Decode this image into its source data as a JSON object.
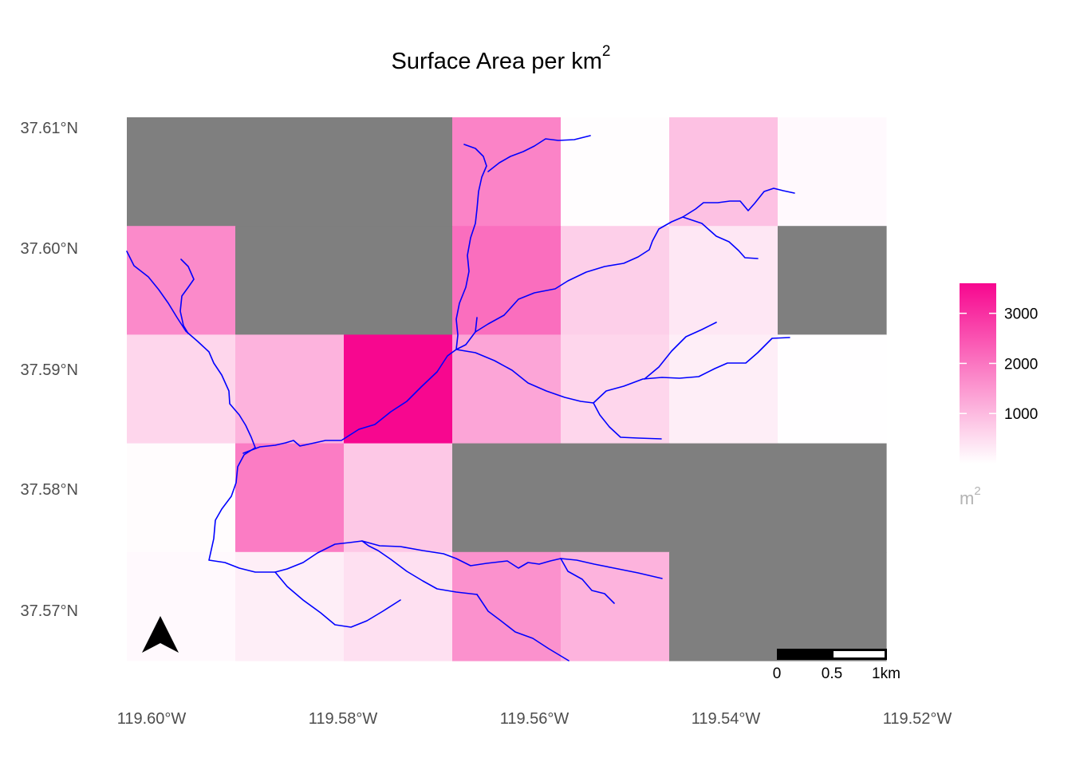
{
  "map": {
    "title": "Surface Area per km",
    "title_superscript": "2",
    "na_color": "#7f7f7f",
    "river_color": "#0000ff",
    "color_low": "#ffffff",
    "color_high": "#f7078f",
    "value_range": [
      0,
      3600
    ],
    "grid": {
      "columns": 7,
      "rows": 5,
      "values": [
        [
          null,
          null,
          null,
          1800,
          30,
          900,
          80
        ],
        [
          1700,
          null,
          null,
          2100,
          700,
          350,
          null
        ],
        [
          600,
          1100,
          3600,
          1300,
          600,
          250,
          10
        ],
        [
          50,
          1900,
          800,
          null,
          null,
          null,
          null
        ],
        [
          80,
          250,
          450,
          1600,
          1100,
          null,
          null
        ]
      ]
    },
    "x_axis": {
      "labels": [
        "119.60°W",
        "119.58°W",
        "119.56°W",
        "119.54°W",
        "119.52°W"
      ]
    },
    "y_axis": {
      "labels": [
        "37.61°N",
        "37.60°N",
        "37.59°N",
        "37.58°N",
        "37.57°N"
      ]
    },
    "legend": {
      "title": "m",
      "title_superscript": "2",
      "ticks": [
        "3000",
        "2000",
        "1000"
      ],
      "tick_values": [
        3000,
        2000,
        1000
      ]
    },
    "scale_bar": {
      "labels": [
        "0",
        "0.5",
        "1km"
      ]
    },
    "north_arrow": {
      "icon": "north-arrow-icon"
    }
  }
}
